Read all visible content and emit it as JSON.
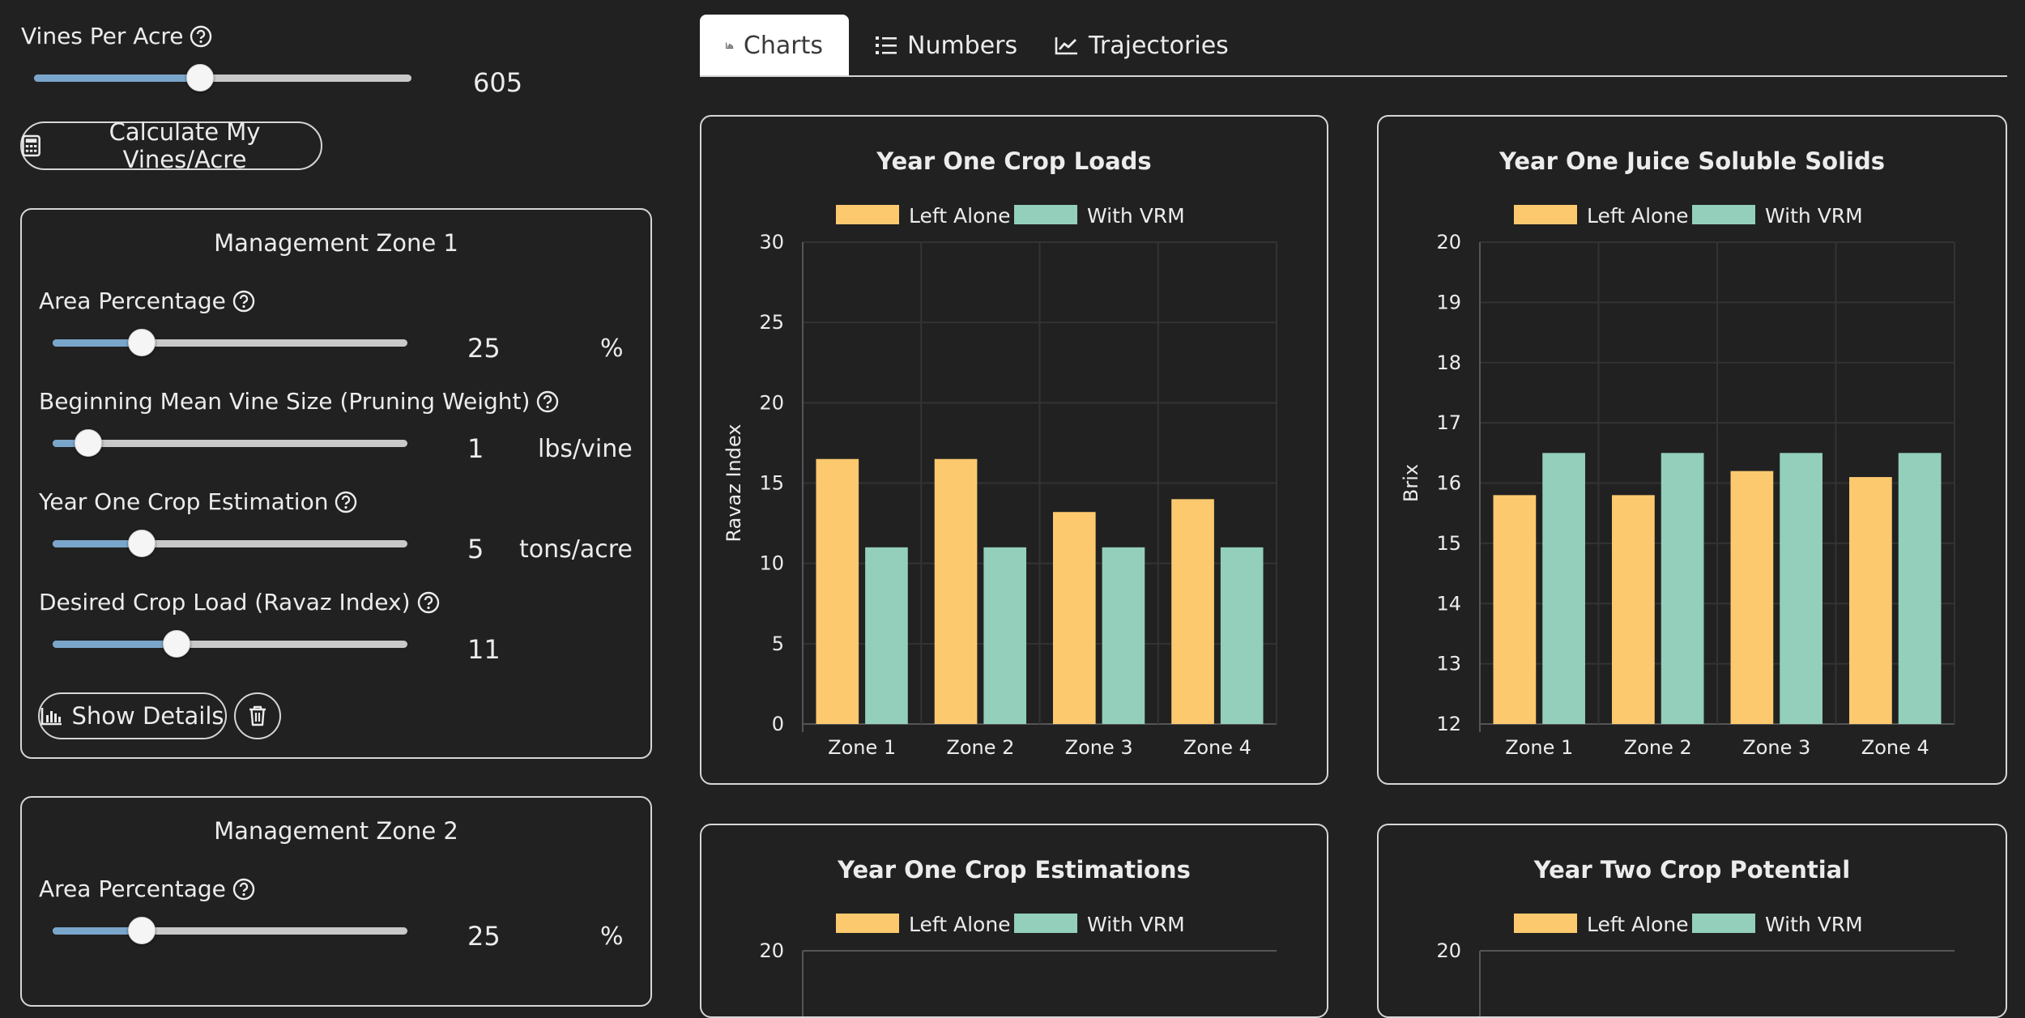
{
  "vines_per_acre": {
    "label": "Vines Per Acre",
    "value": "605",
    "slider_fraction": 0.44
  },
  "calc_button": {
    "label": "Calculate My Vines/Acre",
    "icon": "calculator-icon"
  },
  "zones": [
    {
      "title": "Management Zone 1",
      "fields": [
        {
          "label": "Area Percentage",
          "value": "25",
          "unit": "%",
          "slider_fraction": 0.25
        },
        {
          "label": "Beginning Mean Vine Size (Pruning Weight)",
          "value": "1",
          "unit": "lbs/vine",
          "slider_fraction": 0.1
        },
        {
          "label": "Year One Crop Estimation",
          "value": "5",
          "unit": "tons/acre",
          "slider_fraction": 0.25
        },
        {
          "label": "Desired Crop Load (Ravaz Index)",
          "value": "11",
          "unit": "",
          "slider_fraction": 0.35
        }
      ],
      "show_details_label": "Show Details"
    },
    {
      "title": "Management Zone 2",
      "fields": [
        {
          "label": "Area Percentage",
          "value": "25",
          "unit": "%",
          "slider_fraction": 0.25
        }
      ]
    }
  ],
  "tabs": [
    {
      "label": "Charts",
      "icon": "bar-chart-icon",
      "active": true
    },
    {
      "label": "Numbers",
      "icon": "list-icon",
      "active": false
    },
    {
      "label": "Trajectories",
      "icon": "line-chart-icon",
      "active": false
    }
  ],
  "colors": {
    "left_alone": "#fcc96e",
    "with_vrm": "#93cfbb",
    "slider_fill": "#7ba6cc",
    "background": "#212121"
  },
  "chart_data": [
    {
      "type": "bar",
      "title": "Year One Crop Loads",
      "categories": [
        "Zone 1",
        "Zone 2",
        "Zone 3",
        "Zone 4"
      ],
      "series": [
        {
          "name": "Left Alone",
          "values": [
            16.5,
            16.5,
            13.2,
            14.0
          ]
        },
        {
          "name": "With VRM",
          "values": [
            11,
            11,
            11,
            11
          ]
        }
      ],
      "ylabel": "Ravaz Index",
      "ylim": [
        0,
        30
      ],
      "yticks": [
        "0",
        "5",
        "10",
        "15",
        "20",
        "25",
        "30"
      ],
      "ytick_values": [
        0,
        5,
        10,
        15,
        20,
        25,
        30
      ]
    },
    {
      "type": "bar",
      "title": "Year One Juice Soluble Solids",
      "categories": [
        "Zone 1",
        "Zone 2",
        "Zone 3",
        "Zone 4"
      ],
      "series": [
        {
          "name": "Left Alone",
          "values": [
            15.8,
            15.8,
            16.2,
            16.1
          ]
        },
        {
          "name": "With VRM",
          "values": [
            16.5,
            16.5,
            16.5,
            16.5
          ]
        }
      ],
      "ylabel": "Brix",
      "ylim": [
        12,
        20
      ],
      "yticks": [
        "12",
        "13",
        "14",
        "15",
        "16",
        "17",
        "18",
        "19",
        "20"
      ],
      "ytick_values": [
        12,
        13,
        14,
        15,
        16,
        17,
        18,
        19,
        20
      ]
    },
    {
      "type": "bar",
      "title": "Year One Crop Estimations",
      "categories": [],
      "series": [
        {
          "name": "Left Alone",
          "values": []
        },
        {
          "name": "With VRM",
          "values": []
        }
      ],
      "ylabel": "",
      "ylim": [
        0,
        20
      ],
      "yticks": [
        "20"
      ],
      "ytick_values": [
        20
      ]
    },
    {
      "type": "bar",
      "title": "Year Two Crop Potential",
      "categories": [],
      "series": [
        {
          "name": "Left Alone",
          "values": []
        },
        {
          "name": "With VRM",
          "values": []
        }
      ],
      "ylabel": "",
      "ylim": [
        0,
        20
      ],
      "yticks": [
        "20"
      ],
      "ytick_values": [
        20
      ]
    }
  ]
}
